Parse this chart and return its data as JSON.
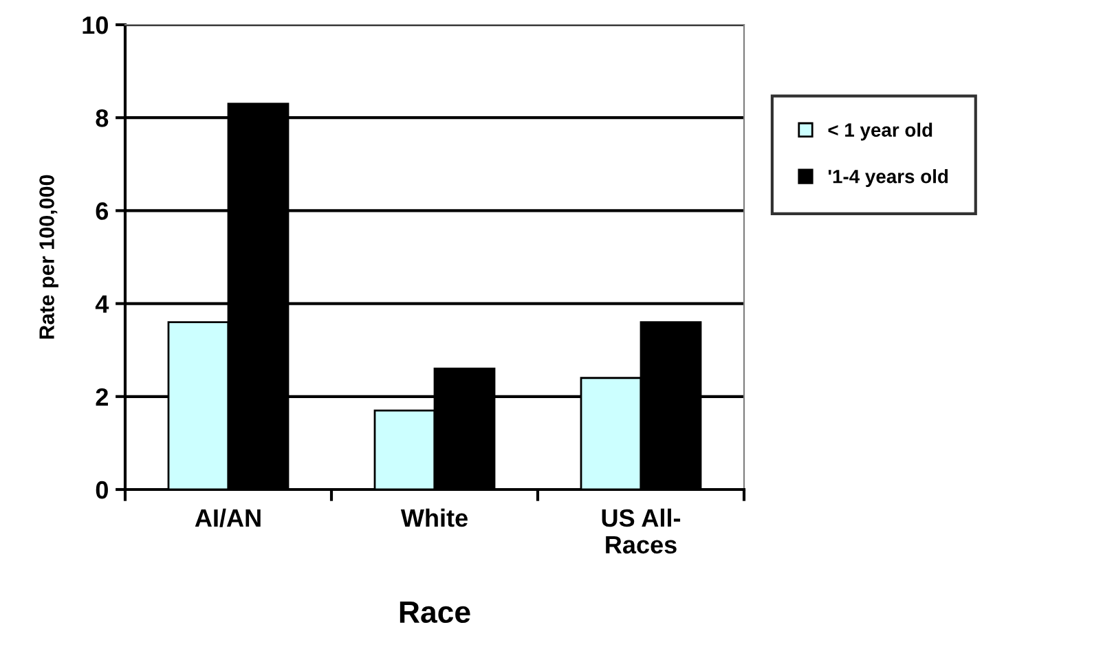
{
  "chart_data": {
    "type": "bar",
    "xlabel": "Race",
    "ylabel": "Rate per 100,000",
    "categories": [
      "AI/AN",
      "White",
      "US All-\nRaces"
    ],
    "series": [
      {
        "name": "< 1 year old",
        "color": "#ccffff",
        "values": [
          3.6,
          1.7,
          2.4
        ]
      },
      {
        "name": "'1-4 years old",
        "color": "#000000",
        "values": [
          8.3,
          2.6,
          3.6
        ]
      }
    ],
    "ylim": [
      0,
      10
    ],
    "yticks": [
      0,
      2,
      4,
      6,
      8,
      10
    ],
    "grid": "y",
    "legend": "right"
  }
}
